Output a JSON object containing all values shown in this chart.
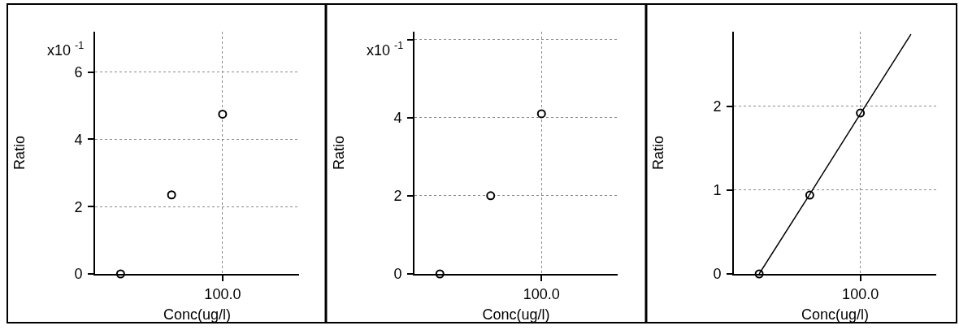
{
  "chart_data": [
    {
      "type": "scatter",
      "xlabel": "Conc(ug/l)",
      "ylabel": "Ratio",
      "annotations": [
        "x10 $^{-1}$"
      ],
      "categories": [
        null,
        null,
        "100.0",
        null
      ],
      "series": [
        {
          "color": "#000000",
          "values": [
            0,
            2.35,
            4.75,
            null
          ]
        }
      ],
      "ylim": [
        0,
        7.2
      ],
      "yticks": [
        0,
        2,
        4,
        6
      ],
      "grid": true,
      "marker": "circle"
    },
    {
      "type": "scatter",
      "xlabel": "Conc(ug/l)",
      "ylabel": "Ratio",
      "annotations": [
        "x10 $^{-1}$"
      ],
      "categories": [
        null,
        null,
        "100.0",
        null
      ],
      "series": [
        {
          "color": "#000000",
          "values": [
            0,
            2,
            4.1,
            null
          ]
        }
      ],
      "ylim": [
        0,
        6.2
      ],
      "yticks": [
        0,
        2,
        4,
        {
          "value": 6,
          "label": null
        }
      ],
      "grid": true,
      "marker": "circle"
    },
    {
      "type": "scatter",
      "xlabel": "Conc(ug/l)",
      "ylabel": "Ratio",
      "categories": [
        null,
        null,
        "100.0",
        null
      ],
      "series": [
        {
          "color": "#000000",
          "values": [
            0,
            0.94,
            1.92,
            null
          ]
        },
        {
          "type": "line",
          "color": "#000000",
          "values": [
            0,
            0.95,
            1.91,
            2.86
          ],
          "line_style": "solid",
          "marker": "none"
        }
      ],
      "ylim": [
        0,
        2.89
      ],
      "yticks": [
        0,
        1,
        2
      ],
      "grid": true,
      "marker": "circle"
    }
  ]
}
